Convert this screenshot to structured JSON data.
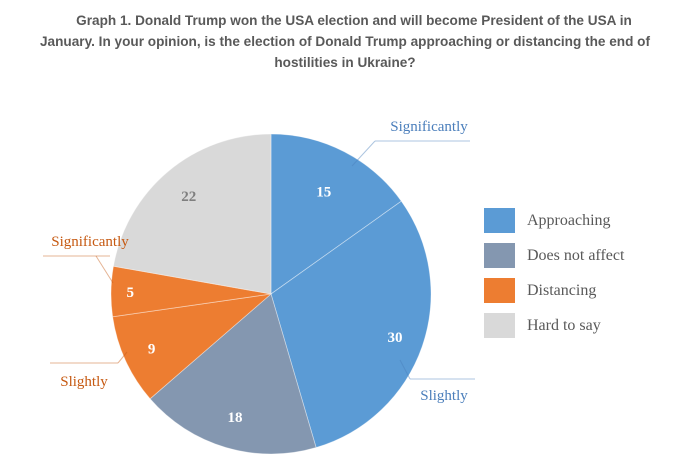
{
  "title": {
    "line1": "Graph  1. Donald Trump won the USA election and will become President of the USA in",
    "line2": "January. In your opinion, is the election of Donald Trump approaching  or distancing the end of",
    "line3": "hostilities in Ukraine?"
  },
  "chart_data": {
    "type": "pie",
    "title": "Graph 1. Donald Trump won the USA election and will become President of the USA in January. In your opinion, is the election of Donald Trump approaching or distancing the end of hostilities in Ukraine?",
    "start_angle": "12 o'clock",
    "direction": "clockwise",
    "slices": [
      {
        "group": "Approaching",
        "sublabel": "Significantly",
        "value": 15,
        "color": "#5B9BD5",
        "label_color": "#ffffff",
        "callout_color": "#4A7EBB"
      },
      {
        "group": "Approaching",
        "sublabel": "Slightly",
        "value": 30,
        "color": "#5B9BD5",
        "label_color": "#ffffff",
        "callout_color": "#4A7EBB"
      },
      {
        "group": "Does not affect",
        "sublabel": "",
        "value": 18,
        "color": "#8497B0",
        "label_color": "#ffffff",
        "callout_color": ""
      },
      {
        "group": "Distancing",
        "sublabel": "Slightly",
        "value": 9,
        "color": "#ED7D31",
        "label_color": "#ffffff",
        "callout_color": "#C65911"
      },
      {
        "group": "Distancing",
        "sublabel": "Significantly",
        "value": 5,
        "color": "#ED7D31",
        "label_color": "#ffffff",
        "callout_color": "#C65911"
      },
      {
        "group": "Hard to say",
        "sublabel": "",
        "value": 22,
        "color": "#D9D9D9",
        "label_color": "#7F7F7F",
        "callout_color": ""
      }
    ],
    "legend": {
      "position": "right",
      "entries": [
        {
          "label": "Approaching",
          "color": "#5B9BD5"
        },
        {
          "label": "Does not affect",
          "color": "#8497B0"
        },
        {
          "label": "Distancing",
          "color": "#ED7D31"
        },
        {
          "label": "Hard to say",
          "color": "#D9D9D9"
        }
      ]
    }
  }
}
